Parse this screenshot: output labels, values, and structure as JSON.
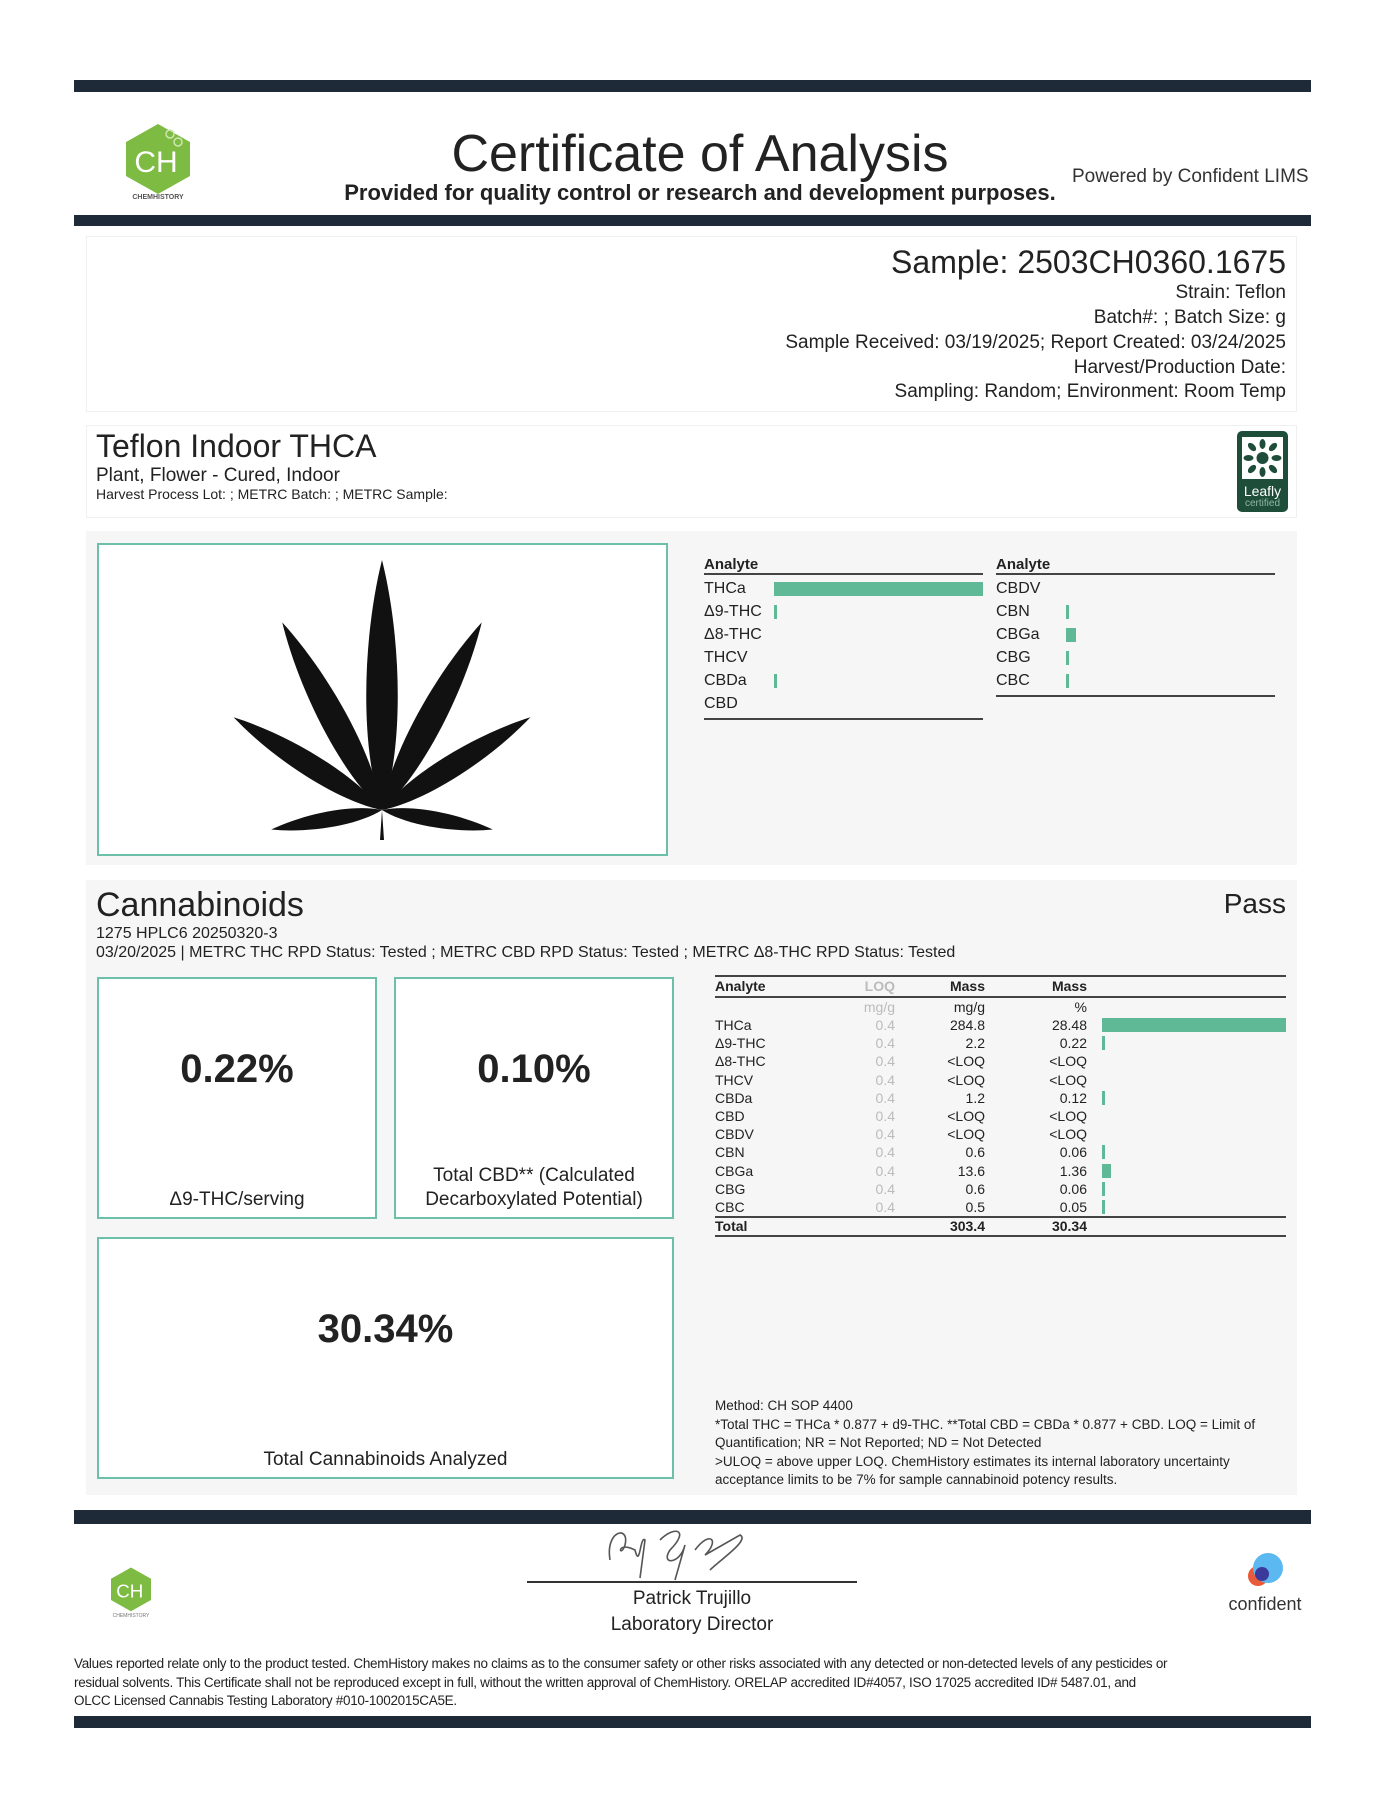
{
  "header": {
    "title": "Certificate of Analysis",
    "subtitle": "Provided for quality control or research and development purposes.",
    "powered_by": "Powered by Confident LIMS",
    "logo_text": "CH",
    "logo_caption": "CHEMHISTORY"
  },
  "sample": {
    "id": "Sample: 2503CH0360.1675",
    "lines": [
      "Strain: Teflon",
      "Batch#: ; Batch Size:  g",
      "Sample Received: 03/19/2025; Report Created: 03/24/2025",
      "Harvest/Production Date:",
      "Sampling: Random; Environment: Room Temp"
    ]
  },
  "product": {
    "name": "Teflon Indoor THCA",
    "type": "Plant, Flower - Cured, Indoor",
    "lot": "Harvest Process Lot: ; METRC Batch: ; METRC Sample:",
    "badge_line1": "Leafly",
    "badge_line2": "certified"
  },
  "summary_chart": {
    "header": "Analyte",
    "color": "#5fb896",
    "left": [
      {
        "name": "THCa",
        "value": 28.48
      },
      {
        "name": "Δ9-THC",
        "value": 0.22
      },
      {
        "name": "Δ8-THC",
        "value": 0
      },
      {
        "name": "THCV",
        "value": 0
      },
      {
        "name": "CBDa",
        "value": 0.12
      },
      {
        "name": "CBD",
        "value": 0
      }
    ],
    "right": [
      {
        "name": "CBDV",
        "value": 0
      },
      {
        "name": "CBN",
        "value": 0.06
      },
      {
        "name": "CBGa",
        "value": 1.36
      },
      {
        "name": "CBG",
        "value": 0.06
      },
      {
        "name": "CBC",
        "value": 0.05
      }
    ]
  },
  "cannabinoids": {
    "title": "Cannabinoids",
    "status": "Pass",
    "line1": "1275 HPLC6 20250320-3",
    "line2": "03/20/2025 | METRC THC RPD Status: Tested ; METRC CBD RPD Status: Tested ; METRC Δ8-THC RPD Status: Tested",
    "box1": {
      "value": "0.22%",
      "label": "Δ9-THC/serving"
    },
    "box2": {
      "value": "0.10%",
      "label_line1": "Total CBD** (Calculated",
      "label_line2": "Decarboxylated Potential)"
    },
    "box3": {
      "value": "30.34%",
      "label": "Total Cannabinoids Analyzed"
    },
    "table": {
      "headers": [
        "Analyte",
        "LOQ",
        "Mass",
        "Mass"
      ],
      "units": [
        "",
        "mg/g",
        "mg/g",
        "%"
      ],
      "rows": [
        {
          "analyte": "THCa",
          "loq": "0.4",
          "mass_mg": "284.8",
          "mass_pct": "28.48",
          "pct": 28.48
        },
        {
          "analyte": "Δ9-THC",
          "loq": "0.4",
          "mass_mg": "2.2",
          "mass_pct": "0.22",
          "pct": 0.22
        },
        {
          "analyte": "Δ8-THC",
          "loq": "0.4",
          "mass_mg": "<LOQ",
          "mass_pct": "<LOQ",
          "pct": 0
        },
        {
          "analyte": "THCV",
          "loq": "0.4",
          "mass_mg": "<LOQ",
          "mass_pct": "<LOQ",
          "pct": 0
        },
        {
          "analyte": "CBDa",
          "loq": "0.4",
          "mass_mg": "1.2",
          "mass_pct": "0.12",
          "pct": 0.12
        },
        {
          "analyte": "CBD",
          "loq": "0.4",
          "mass_mg": "<LOQ",
          "mass_pct": "<LOQ",
          "pct": 0
        },
        {
          "analyte": "CBDV",
          "loq": "0.4",
          "mass_mg": "<LOQ",
          "mass_pct": "<LOQ",
          "pct": 0
        },
        {
          "analyte": "CBN",
          "loq": "0.4",
          "mass_mg": "0.6",
          "mass_pct": "0.06",
          "pct": 0.06
        },
        {
          "analyte": "CBGa",
          "loq": "0.4",
          "mass_mg": "13.6",
          "mass_pct": "1.36",
          "pct": 1.36
        },
        {
          "analyte": "CBG",
          "loq": "0.4",
          "mass_mg": "0.6",
          "mass_pct": "0.06",
          "pct": 0.06
        },
        {
          "analyte": "CBC",
          "loq": "0.4",
          "mass_mg": "0.5",
          "mass_pct": "0.05",
          "pct": 0.05
        }
      ],
      "total": {
        "label": "Total",
        "mass_mg": "303.4",
        "mass_pct": "30.34"
      }
    },
    "notes": [
      "Method: CH SOP 4400",
      "*Total THC = THCa * 0.877 + d9-THC. **Total CBD = CBDa * 0.877 + CBD. LOQ = Limit of",
      "Quantification; NR = Not Reported; ND = Not Detected",
      ">ULOQ = above upper LOQ. ChemHistory estimates its internal laboratory uncertainty",
      "acceptance limits to be 7% for sample cannabinoid potency results."
    ]
  },
  "footer": {
    "signer_name": "Patrick Trujillo",
    "signer_title": "Laboratory Director",
    "confident_logo": "confident",
    "disclaimer": [
      "Values reported relate only to the product tested. ChemHistory makes no claims as to the consumer safety or other risks associated with any detected or non-detected levels of any pesticides or",
      "residual solvents. This Certificate shall not be reproduced except in full, without the written approval of ChemHistory.  ORELAP accredited ID#4057, ISO 17025 accredited ID# 5487.01, and",
      "OLCC Licensed Cannabis Testing Laboratory #010-1002015CA5E."
    ]
  },
  "colors": {
    "accent": "#5fb896",
    "dark_bar": "#1f2a38",
    "logo_green": "#7dbb42",
    "leafly_green": "#1e4d3a"
  }
}
